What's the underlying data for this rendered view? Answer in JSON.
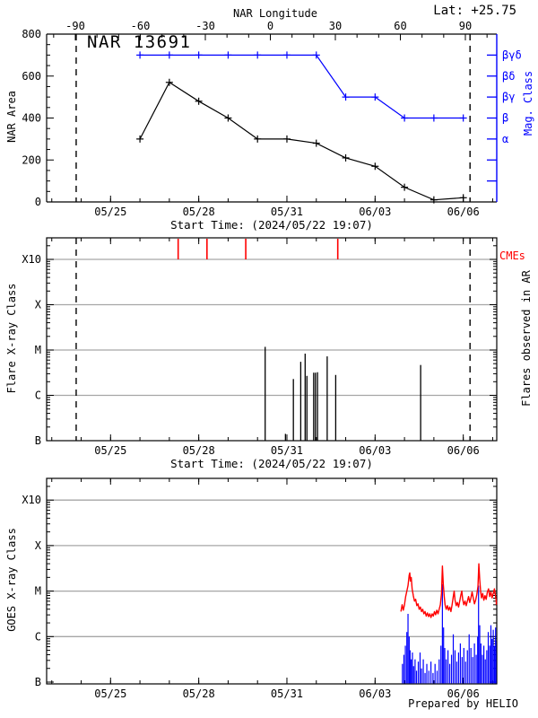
{
  "header": {
    "title": "NAR 13691",
    "lat_label": "Lat: +25.75",
    "top_axis_label": "NAR Longitude"
  },
  "footer": {
    "prepared_by": "Prepared by HELIO"
  },
  "colors": {
    "fg": "#000000",
    "accent_blue": "#0000ff",
    "accent_red": "#ff0000",
    "grid": "#a6a6a6"
  },
  "time_axis": {
    "start_label": "Start Time: (2024/05/22 19:07)",
    "tick_labels": [
      "05/25",
      "05/28",
      "05/31",
      "06/03",
      "06/06"
    ],
    "tick_days": [
      0,
      3,
      6,
      9,
      12
    ],
    "minor_day_range": [
      -2,
      13
    ],
    "limb_dashed_days": [
      -1.17,
      12.23
    ]
  },
  "chart_data": [
    {
      "type": "line",
      "title": "NAR 13691",
      "lat_label": "Lat: +25.75",
      "ylabel": "NAR Area",
      "ylim": [
        0,
        800
      ],
      "yticks": [
        0,
        200,
        400,
        600,
        800
      ],
      "y_minor_step": 50,
      "top_axis": {
        "label": "NAR Longitude",
        "ticks": [
          -90,
          -60,
          -30,
          0,
          30,
          60,
          90
        ],
        "minor_step": 10
      },
      "right_axis": {
        "label": "Mag. Class",
        "tick_values": [
          700,
          600,
          500,
          400,
          300,
          200,
          100
        ],
        "tick_labels": [
          "βγδ",
          "βδ",
          "βγ",
          "β",
          "α",
          "",
          ""
        ]
      },
      "x_dates": [
        "05/26",
        "05/27",
        "05/28",
        "05/29",
        "05/30",
        "05/31",
        "06/01",
        "06/02",
        "06/03",
        "06/04",
        "06/05",
        "06/06"
      ],
      "x_days": [
        1,
        2,
        3,
        4,
        5,
        6,
        7,
        8,
        9,
        10,
        11,
        12
      ],
      "series": [
        {
          "name": "NAR Area",
          "color": "#000000",
          "values": [
            300,
            570,
            480,
            400,
            300,
            300,
            280,
            210,
            170,
            70,
            10,
            20
          ]
        },
        {
          "name": "Magnetic Class",
          "color": "#0000ff",
          "levels": [
            700,
            700,
            700,
            700,
            700,
            700,
            700,
            500,
            500,
            400,
            400,
            400
          ],
          "classes": [
            "βγδ",
            "βγδ",
            "βγδ",
            "βγδ",
            "βγδ",
            "βγδ",
            "βγδ",
            "βγ",
            "βγ",
            "β",
            "β",
            "β"
          ]
        }
      ],
      "xlabel": "Start Time: (2024/05/22 19:07)"
    },
    {
      "type": "event-lines",
      "ylabel": "Flare X-ray Class",
      "right_label": "Flares observed in AR",
      "ytick_labels": [
        "B",
        "C",
        "M",
        "X",
        "X10"
      ],
      "ytick_exponents": [
        -7,
        -6,
        -5,
        -4,
        -3
      ],
      "grid_exponents": [
        -6,
        -5,
        -4,
        -3
      ],
      "cme": {
        "label": "CMEs",
        "days_since_05_25": [
          2.3,
          3.28,
          4.6,
          7.73
        ]
      },
      "flares_day_exponent": [
        [
          5.26,
          -4.93
        ],
        [
          5.95,
          -6.85
        ],
        [
          6.22,
          -5.64
        ],
        [
          6.47,
          -5.26
        ],
        [
          6.62,
          -5.08
        ],
        [
          6.68,
          -5.57
        ],
        [
          6.91,
          -5.5
        ],
        [
          6.97,
          -5.5
        ],
        [
          7.04,
          -5.49
        ],
        [
          7.37,
          -5.14
        ],
        [
          7.66,
          -5.55
        ],
        [
          10.55,
          -5.33
        ]
      ],
      "flare_classes": [
        "M1.2",
        "B1.4",
        "C2.3",
        "C5.5",
        "C8.3",
        "C2.7",
        "C3.2",
        "C3.2",
        "C3.2",
        "C7.2",
        "C2.8",
        "C4.7"
      ],
      "xlabel": "Start Time: (2024/05/22 19:07)"
    },
    {
      "type": "line",
      "ylabel": "GOES X-ray Class",
      "ytick_labels": [
        "B",
        "C",
        "M",
        "X",
        "X10"
      ],
      "ytick_exponents": [
        -7,
        -6,
        -5,
        -4,
        -3
      ],
      "grid_exponents": [
        -6,
        -5,
        -4,
        -3
      ],
      "series": [
        {
          "name": "GOES long channel",
          "color": "#ff0000",
          "points_day_exponent": [
            [
              9.88,
              -5.45
            ],
            [
              9.92,
              -5.3
            ],
            [
              9.96,
              -5.42
            ],
            [
              10.0,
              -5.3
            ],
            [
              10.04,
              -5.12
            ],
            [
              10.08,
              -5.0
            ],
            [
              10.12,
              -4.88
            ],
            [
              10.16,
              -4.65
            ],
            [
              10.18,
              -4.6
            ],
            [
              10.2,
              -4.78
            ],
            [
              10.23,
              -4.7
            ],
            [
              10.26,
              -4.95
            ],
            [
              10.3,
              -5.1
            ],
            [
              10.34,
              -5.22
            ],
            [
              10.38,
              -5.18
            ],
            [
              10.42,
              -5.32
            ],
            [
              10.46,
              -5.28
            ],
            [
              10.5,
              -5.4
            ],
            [
              10.54,
              -5.35
            ],
            [
              10.58,
              -5.45
            ],
            [
              10.62,
              -5.4
            ],
            [
              10.66,
              -5.5
            ],
            [
              10.7,
              -5.45
            ],
            [
              10.74,
              -5.55
            ],
            [
              10.78,
              -5.48
            ],
            [
              10.82,
              -5.56
            ],
            [
              10.86,
              -5.5
            ],
            [
              10.9,
              -5.58
            ],
            [
              10.94,
              -5.5
            ],
            [
              10.98,
              -5.55
            ],
            [
              11.02,
              -5.45
            ],
            [
              11.06,
              -5.52
            ],
            [
              11.1,
              -5.42
            ],
            [
              11.14,
              -5.5
            ],
            [
              11.18,
              -5.4
            ],
            [
              11.22,
              -5.3
            ],
            [
              11.26,
              -5.05
            ],
            [
              11.29,
              -4.45
            ],
            [
              11.32,
              -4.85
            ],
            [
              11.35,
              -5.1
            ],
            [
              11.38,
              -5.3
            ],
            [
              11.42,
              -5.4
            ],
            [
              11.46,
              -5.32
            ],
            [
              11.5,
              -5.42
            ],
            [
              11.54,
              -5.35
            ],
            [
              11.58,
              -5.45
            ],
            [
              11.62,
              -5.3
            ],
            [
              11.66,
              -5.12
            ],
            [
              11.69,
              -5.0
            ],
            [
              11.72,
              -5.2
            ],
            [
              11.76,
              -5.32
            ],
            [
              11.8,
              -5.25
            ],
            [
              11.84,
              -5.35
            ],
            [
              11.88,
              -5.22
            ],
            [
              11.92,
              -5.08
            ],
            [
              11.95,
              -5.0
            ],
            [
              11.98,
              -5.18
            ],
            [
              12.02,
              -5.3
            ],
            [
              12.06,
              -5.22
            ],
            [
              12.1,
              -5.32
            ],
            [
              12.14,
              -5.22
            ],
            [
              12.18,
              -5.12
            ],
            [
              12.22,
              -5.25
            ],
            [
              12.26,
              -5.15
            ],
            [
              12.3,
              -5.02
            ],
            [
              12.34,
              -5.15
            ],
            [
              12.38,
              -5.28
            ],
            [
              12.42,
              -5.2
            ],
            [
              12.46,
              -5.08
            ],
            [
              12.5,
              -4.9
            ],
            [
              12.53,
              -4.4
            ],
            [
              12.56,
              -4.75
            ],
            [
              12.59,
              -5.0
            ],
            [
              12.62,
              -5.15
            ],
            [
              12.66,
              -5.05
            ],
            [
              12.7,
              -5.2
            ],
            [
              12.74,
              -5.1
            ],
            [
              12.78,
              -5.18
            ],
            [
              12.82,
              -5.02
            ],
            [
              12.86,
              -4.95
            ],
            [
              12.9,
              -5.12
            ],
            [
              12.94,
              -5.02
            ],
            [
              12.98,
              -5.15
            ],
            [
              13.02,
              -5.05
            ],
            [
              13.06,
              -4.95
            ],
            [
              13.1,
              -5.12
            ],
            [
              13.14,
              -5.22
            ],
            [
              13.17,
              -5.3
            ]
          ]
        },
        {
          "name": "GOES short channel",
          "color": "#0000ff",
          "spikes_day_exponent": [
            [
              9.93,
              -6.6
            ],
            [
              9.98,
              -6.4
            ],
            [
              10.03,
              -6.2
            ],
            [
              10.08,
              -5.9
            ],
            [
              10.12,
              -5.5
            ],
            [
              10.16,
              -6.0
            ],
            [
              10.19,
              -6.3
            ],
            [
              10.23,
              -6.5
            ],
            [
              10.27,
              -6.35
            ],
            [
              10.31,
              -6.65
            ],
            [
              10.36,
              -6.5
            ],
            [
              10.41,
              -6.75
            ],
            [
              10.47,
              -6.55
            ],
            [
              10.53,
              -6.35
            ],
            [
              10.58,
              -6.7
            ],
            [
              10.64,
              -6.5
            ],
            [
              10.7,
              -6.8
            ],
            [
              10.76,
              -6.6
            ],
            [
              10.83,
              -6.75
            ],
            [
              10.9,
              -6.55
            ],
            [
              10.97,
              -6.8
            ],
            [
              11.04,
              -6.6
            ],
            [
              11.11,
              -6.75
            ],
            [
              11.18,
              -6.5
            ],
            [
              11.24,
              -6.2
            ],
            [
              11.29,
              -4.85
            ],
            [
              11.33,
              -5.8
            ],
            [
              11.37,
              -6.25
            ],
            [
              11.42,
              -6.5
            ],
            [
              11.48,
              -6.3
            ],
            [
              11.54,
              -6.6
            ],
            [
              11.6,
              -6.4
            ],
            [
              11.66,
              -5.95
            ],
            [
              11.72,
              -6.3
            ],
            [
              11.78,
              -6.55
            ],
            [
              11.84,
              -6.35
            ],
            [
              11.9,
              -6.15
            ],
            [
              11.96,
              -6.45
            ],
            [
              12.02,
              -6.25
            ],
            [
              12.08,
              -6.55
            ],
            [
              12.14,
              -6.3
            ],
            [
              12.2,
              -5.95
            ],
            [
              12.26,
              -6.25
            ],
            [
              12.32,
              -6.45
            ],
            [
              12.38,
              -6.15
            ],
            [
              12.44,
              -6.4
            ],
            [
              12.49,
              -6.0
            ],
            [
              12.52,
              -4.88
            ],
            [
              12.56,
              -5.75
            ],
            [
              12.6,
              -6.15
            ],
            [
              12.65,
              -6.4
            ],
            [
              12.7,
              -6.2
            ],
            [
              12.75,
              -6.5
            ],
            [
              12.8,
              -6.3
            ],
            [
              12.85,
              -5.9
            ],
            [
              12.9,
              -6.2
            ],
            [
              12.94,
              -5.75
            ],
            [
              12.98,
              -6.05
            ],
            [
              13.02,
              -5.85
            ],
            [
              13.06,
              -6.2
            ],
            [
              13.1,
              -5.8
            ],
            [
              13.13,
              -6.1
            ],
            [
              13.16,
              -6.35
            ]
          ]
        }
      ],
      "xlabel_right": "Prepared by HELIO"
    }
  ]
}
